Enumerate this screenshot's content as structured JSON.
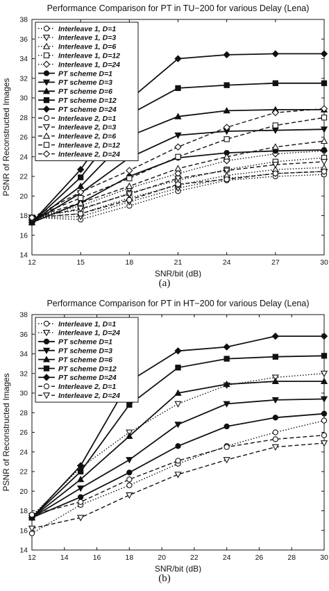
{
  "chart_data": [
    {
      "type": "line",
      "title": "Performance Comparison for PT in TU−200 for various Delay (Lena)",
      "xlabel": "SNR/bit (dB)",
      "ylabel": "PSNR of Reconstructed Images",
      "caption": "(a)",
      "xlim": [
        12,
        30
      ],
      "ylim": [
        14,
        38
      ],
      "x_ticks": [
        12,
        15,
        18,
        21,
        24,
        27,
        30
      ],
      "y_ticks": [
        14,
        16,
        18,
        20,
        22,
        24,
        26,
        28,
        30,
        32,
        34,
        36,
        38
      ],
      "x": [
        12,
        15,
        18,
        21,
        24,
        27,
        30
      ],
      "grid": false,
      "legend_position": "top-left",
      "series": [
        {
          "name": "Interleave 1, D=1",
          "style": "dotted",
          "marker": "circle",
          "values": [
            17.8,
            17.6,
            19.0,
            20.5,
            21.6,
            22.0,
            22.2
          ]
        },
        {
          "name": "Interleave 1, D=3",
          "style": "dotted",
          "marker": "tri-down",
          "values": [
            17.8,
            17.9,
            19.4,
            20.8,
            21.8,
            22.3,
            22.5
          ]
        },
        {
          "name": "Interleave 1, D=6",
          "style": "dotted",
          "marker": "tri-up",
          "values": [
            17.8,
            18.2,
            19.8,
            21.1,
            22.1,
            22.7,
            22.9
          ]
        },
        {
          "name": "Interleave 1, D=12",
          "style": "dotted",
          "marker": "square",
          "values": [
            17.8,
            18.6,
            20.3,
            21.6,
            22.7,
            23.5,
            23.9
          ]
        },
        {
          "name": "Interleave 1, D=24",
          "style": "dotted",
          "marker": "diamond",
          "values": [
            17.8,
            19.0,
            20.8,
            22.3,
            23.6,
            24.3,
            24.6
          ]
        },
        {
          "name": "PT scheme  D=1",
          "style": "solid",
          "marker": "circle",
          "values": [
            17.3,
            19.3,
            22.0,
            23.9,
            24.4,
            24.6,
            24.7
          ]
        },
        {
          "name": "PT scheme  D=3",
          "style": "solid",
          "marker": "tri-down",
          "values": [
            17.3,
            20.3,
            23.9,
            26.2,
            26.6,
            26.7,
            26.8
          ]
        },
        {
          "name": "PT scheme  D=6",
          "style": "solid",
          "marker": "tri-up",
          "values": [
            17.3,
            21.0,
            26.1,
            28.1,
            28.7,
            28.8,
            28.8
          ]
        },
        {
          "name": "PT scheme  D=12",
          "style": "solid",
          "marker": "square",
          "values": [
            17.3,
            21.9,
            28.3,
            31.0,
            31.3,
            31.5,
            31.5
          ]
        },
        {
          "name": "PT scheme  D=24",
          "style": "solid",
          "marker": "diamond",
          "values": [
            17.3,
            22.7,
            29.8,
            34.0,
            34.4,
            34.5,
            34.5
          ]
        },
        {
          "name": "Interleave 2, D=1",
          "style": "dashed",
          "marker": "circle",
          "values": [
            17.8,
            18.2,
            19.6,
            21.2,
            21.7,
            22.3,
            22.5
          ]
        },
        {
          "name": "Interleave 2, D=3",
          "style": "dashed",
          "marker": "tri-down",
          "values": [
            17.8,
            18.7,
            20.2,
            21.8,
            22.6,
            23.2,
            23.5
          ]
        },
        {
          "name": "Interleave 2, D=6",
          "style": "dashed",
          "marker": "tri-up",
          "values": [
            17.8,
            19.3,
            21.0,
            22.8,
            24.0,
            25.0,
            25.6
          ]
        },
        {
          "name": "Interleave 2, D=12",
          "style": "dashed",
          "marker": "square",
          "values": [
            17.8,
            19.8,
            21.8,
            24.0,
            25.8,
            27.2,
            28.0
          ]
        },
        {
          "name": "Interleave 2, D=24",
          "style": "dashed",
          "marker": "diamond",
          "values": [
            17.8,
            20.4,
            22.6,
            25.0,
            27.0,
            28.5,
            28.9
          ]
        }
      ]
    },
    {
      "type": "line",
      "title": "Performance Comparison for PT in HT−200 for various Delay (Lena)",
      "xlabel": "SNR/bit (dB)",
      "ylabel": "PSNR of Reconstructed Images",
      "caption": "(b)",
      "xlim": [
        12,
        30
      ],
      "ylim": [
        14,
        38
      ],
      "x_ticks": [
        12,
        14,
        16,
        18,
        20,
        22,
        24,
        26,
        28,
        30
      ],
      "y_ticks": [
        14,
        16,
        18,
        20,
        22,
        24,
        26,
        28,
        30,
        32,
        34,
        36,
        38
      ],
      "x": [
        12,
        15,
        18,
        21,
        24,
        27,
        30
      ],
      "grid": false,
      "legend_position": "top-left",
      "series": [
        {
          "name": "Interleave 1, D=1",
          "style": "dotted",
          "marker": "circle",
          "values": [
            15.7,
            18.6,
            20.6,
            22.8,
            24.6,
            26.0,
            27.2
          ]
        },
        {
          "name": "Interleave 1, D=24",
          "style": "dotted",
          "marker": "tri-down",
          "values": [
            17.5,
            22.4,
            26.0,
            28.9,
            30.8,
            31.6,
            32.0
          ]
        },
        {
          "name": "PT scheme  D=1",
          "style": "solid",
          "marker": "circle",
          "values": [
            17.3,
            19.4,
            21.9,
            24.6,
            26.6,
            27.5,
            27.9
          ]
        },
        {
          "name": "PT scheme  D=3",
          "style": "solid",
          "marker": "tri-down",
          "values": [
            17.3,
            20.3,
            23.2,
            26.8,
            28.9,
            29.3,
            29.4
          ]
        },
        {
          "name": "PT scheme  D=6",
          "style": "solid",
          "marker": "tri-up",
          "values": [
            17.3,
            21.2,
            25.6,
            30.0,
            30.9,
            31.2,
            31.2
          ]
        },
        {
          "name": "PT scheme  D=12",
          "style": "solid",
          "marker": "square",
          "values": [
            17.3,
            22.0,
            28.8,
            32.6,
            33.5,
            33.7,
            33.8
          ]
        },
        {
          "name": "PT scheme  D=24",
          "style": "solid",
          "marker": "diamond",
          "values": [
            17.3,
            22.6,
            31.2,
            34.3,
            34.7,
            35.8,
            35.8
          ]
        },
        {
          "name": "Interleave 2, D=1",
          "style": "dashed",
          "marker": "circle",
          "values": [
            17.6,
            18.9,
            21.2,
            23.1,
            24.5,
            25.3,
            25.7
          ]
        },
        {
          "name": "Interleave 2, D=24",
          "style": "dashed",
          "marker": "tri-down",
          "values": [
            16.2,
            17.3,
            19.6,
            21.7,
            23.2,
            24.5,
            24.9
          ]
        }
      ]
    }
  ]
}
